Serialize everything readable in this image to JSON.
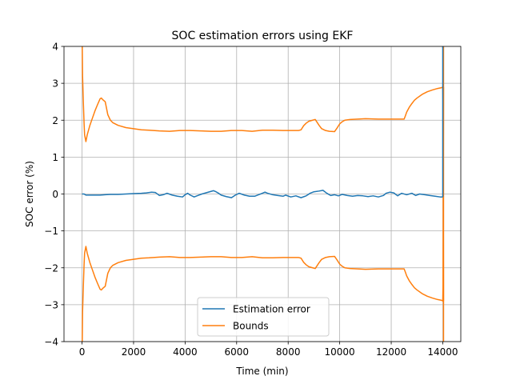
{
  "chart_data": {
    "type": "line",
    "title": "SOC estimation errors using EKF",
    "xlabel": "Time (min)",
    "ylabel": "SOC error (%)",
    "xlim": [
      -700,
      14700
    ],
    "ylim": [
      -4,
      4
    ],
    "xticks": [
      0,
      2000,
      4000,
      6000,
      8000,
      10000,
      12000,
      14000
    ],
    "xtick_labels": [
      "0",
      "2000",
      "4000",
      "6000",
      "8000",
      "10000",
      "12000",
      "14000"
    ],
    "yticks": [
      -4,
      -3,
      -2,
      -1,
      0,
      1,
      2,
      3,
      4
    ],
    "ytick_labels": [
      "−4",
      "−3",
      "−2",
      "−1",
      "0",
      "1",
      "2",
      "3",
      "4"
    ],
    "grid": true,
    "legend_position": "lower-center",
    "series": [
      {
        "name": "Estimation error",
        "color": "#1f77b4",
        "x": [
          0,
          80,
          150,
          300,
          500,
          700,
          900,
          1100,
          1400,
          1700,
          2000,
          2300,
          2500,
          2700,
          2850,
          3000,
          3150,
          3300,
          3500,
          3700,
          3900,
          4000,
          4100,
          4200,
          4350,
          4500,
          4650,
          4800,
          4950,
          5100,
          5200,
          5300,
          5400,
          5600,
          5800,
          5950,
          6100,
          6300,
          6500,
          6700,
          6850,
          7000,
          7100,
          7200,
          7400,
          7600,
          7800,
          7900,
          8100,
          8300,
          8500,
          8700,
          8850,
          9000,
          9200,
          9350,
          9500,
          9650,
          9800,
          9950,
          10100,
          10300,
          10500,
          10700,
          10900,
          11100,
          11300,
          11500,
          11700,
          11800,
          11950,
          12100,
          12250,
          12400,
          12600,
          12800,
          12950,
          13100,
          13300,
          13500,
          13700,
          13900,
          14000
        ],
        "y": [
          0.0,
          0.0,
          -0.03,
          -0.03,
          -0.03,
          -0.03,
          -0.02,
          -0.01,
          -0.01,
          0.0,
          0.01,
          0.02,
          0.03,
          0.05,
          0.04,
          -0.04,
          -0.02,
          0.02,
          -0.03,
          -0.06,
          -0.08,
          -0.02,
          0.02,
          -0.03,
          -0.08,
          -0.04,
          0.0,
          0.03,
          0.06,
          0.09,
          0.06,
          0.02,
          -0.03,
          -0.07,
          -0.1,
          -0.03,
          0.02,
          -0.03,
          -0.06,
          -0.06,
          -0.02,
          0.02,
          0.05,
          0.02,
          -0.02,
          -0.04,
          -0.06,
          -0.03,
          -0.08,
          -0.05,
          -0.1,
          -0.05,
          0.02,
          0.06,
          0.08,
          0.1,
          0.02,
          -0.04,
          -0.02,
          -0.05,
          -0.01,
          -0.04,
          -0.06,
          -0.04,
          -0.05,
          -0.07,
          -0.05,
          -0.08,
          -0.04,
          0.02,
          0.05,
          0.03,
          -0.05,
          0.02,
          -0.02,
          0.02,
          -0.04,
          0.0,
          -0.02,
          -0.04,
          -0.06,
          -0.08,
          -0.08
        ]
      },
      {
        "name": "Bounds",
        "color": "#ff7f0e",
        "x": [
          0,
          20,
          50,
          80,
          100,
          150,
          200,
          300,
          400,
          500,
          600,
          700,
          750,
          800,
          900,
          1000,
          1100,
          1200,
          1400,
          1700,
          2000,
          2300,
          2600,
          3000,
          3400,
          3800,
          4200,
          4600,
          5000,
          5400,
          5800,
          6200,
          6600,
          7000,
          7400,
          7800,
          8200,
          8400,
          8500,
          8600,
          8700,
          8800,
          8950,
          9050,
          9200,
          9300,
          9450,
          9600,
          9800,
          9900,
          10000,
          10100,
          10200,
          10400,
          10700,
          11000,
          11500,
          12000,
          12200,
          12300,
          12400,
          12500,
          12550,
          12600,
          12700,
          12800,
          12900,
          13000,
          13200,
          13400,
          13600,
          13800,
          13950,
          14000,
          14010,
          14020,
          14030
        ],
        "y": [
          4.5,
          3.2,
          2.5,
          1.9,
          1.6,
          1.42,
          1.6,
          1.85,
          2.05,
          2.25,
          2.42,
          2.58,
          2.6,
          2.56,
          2.5,
          2.15,
          2.0,
          1.93,
          1.86,
          1.8,
          1.77,
          1.74,
          1.73,
          1.71,
          1.7,
          1.72,
          1.72,
          1.71,
          1.7,
          1.7,
          1.72,
          1.72,
          1.7,
          1.73,
          1.73,
          1.72,
          1.72,
          1.72,
          1.74,
          1.85,
          1.92,
          1.97,
          2.0,
          2.02,
          1.86,
          1.77,
          1.72,
          1.7,
          1.69,
          1.79,
          1.9,
          1.96,
          2.0,
          2.02,
          2.03,
          2.04,
          2.03,
          2.03,
          2.03,
          2.03,
          2.03,
          2.03,
          2.12,
          2.22,
          2.35,
          2.45,
          2.54,
          2.6,
          2.7,
          2.77,
          2.82,
          2.86,
          2.88,
          2.9,
          2.5,
          0.5,
          -2.9
        ],
        "mirror": true,
        "end_spike_x": 14030,
        "end_spike_y": 4.5
      }
    ]
  }
}
